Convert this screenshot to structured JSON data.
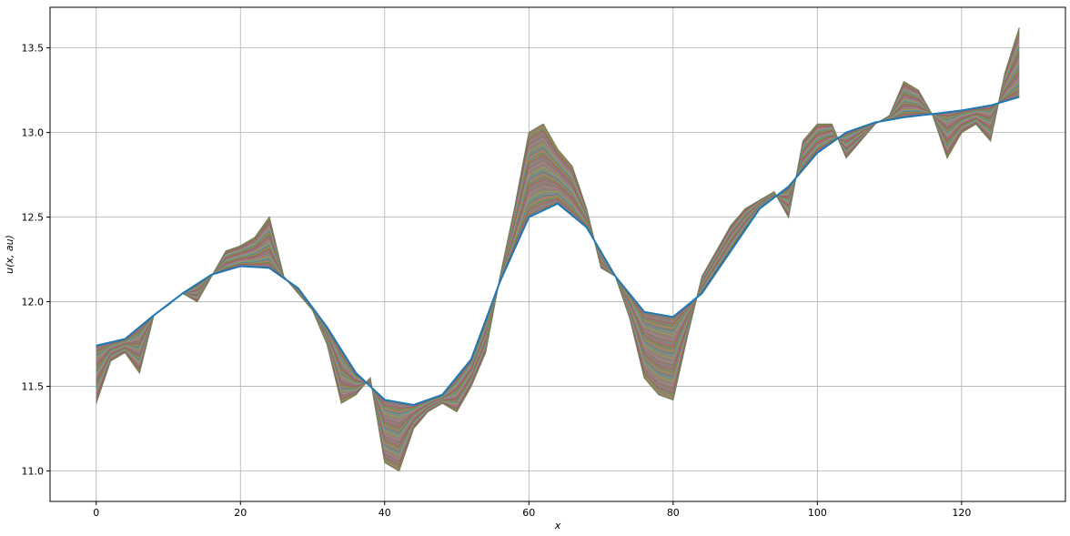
{
  "chart_data": {
    "type": "line",
    "title": "",
    "xlabel": "x",
    "ylabel": "u(x, au)",
    "xlim": [
      -6.4,
      134.4
    ],
    "ylim": [
      10.82,
      13.74
    ],
    "xticks": [
      0,
      20,
      40,
      60,
      80,
      100,
      120
    ],
    "yticks": [
      11.0,
      11.5,
      12.0,
      12.5,
      13.0,
      13.5
    ],
    "xtick_labels": [
      "0",
      "20",
      "40",
      "60",
      "80",
      "100",
      "120"
    ],
    "ytick_labels": [
      "11.0",
      "11.5",
      "12.0",
      "12.5",
      "13.0",
      "13.5"
    ],
    "grid": true,
    "legend": "none",
    "band_colors": [
      "#1f77b4",
      "#ff7f0e",
      "#2ca02c",
      "#d62728",
      "#9467bd",
      "#8c564b",
      "#e377c2",
      "#7f7f7f",
      "#bcbd22",
      "#17becf"
    ],
    "series": [
      {
        "x": [
          0,
          2,
          4,
          6,
          8,
          10,
          12,
          14,
          16,
          18,
          20,
          22,
          24,
          26,
          28,
          30,
          32,
          34,
          36,
          38,
          40,
          42,
          44,
          46,
          48,
          50,
          52,
          54,
          56,
          58,
          60,
          62,
          64,
          66,
          68,
          70,
          72,
          74,
          76,
          78,
          80,
          82,
          84,
          86,
          88,
          90,
          92,
          94,
          96,
          98,
          100,
          102,
          104,
          106,
          108,
          110,
          112,
          114,
          116,
          118,
          120,
          122,
          124,
          126,
          128
        ],
        "values": [
          11.4,
          11.65,
          11.7,
          11.58,
          11.92,
          11.98,
          12.05,
          12.0,
          12.15,
          12.3,
          12.33,
          12.38,
          12.5,
          12.15,
          12.05,
          11.95,
          11.75,
          11.4,
          11.45,
          11.55,
          11.05,
          11.0,
          11.25,
          11.35,
          11.4,
          11.35,
          11.5,
          11.7,
          12.15,
          12.55,
          13.0,
          13.05,
          12.9,
          12.8,
          12.55,
          12.2,
          12.15,
          11.9,
          11.55,
          11.45,
          11.42,
          11.8,
          12.15,
          12.3,
          12.45,
          12.55,
          12.6,
          12.65,
          12.5,
          12.95,
          13.05,
          13.05,
          12.85,
          12.95,
          13.05,
          13.1,
          13.3,
          13.25,
          13.1,
          12.85,
          13.0,
          13.05,
          12.95,
          13.35,
          13.62
        ]
      },
      {
        "x": [
          0,
          4,
          8,
          12,
          16,
          20,
          24,
          28,
          32,
          36,
          40,
          44,
          48,
          52,
          56,
          60,
          64,
          68,
          72,
          76,
          80,
          84,
          88,
          92,
          96,
          100,
          104,
          108,
          112,
          116,
          120,
          124,
          128
        ],
        "values": [
          11.74,
          11.78,
          11.92,
          12.05,
          12.16,
          12.21,
          12.2,
          12.08,
          11.85,
          11.58,
          11.42,
          11.39,
          11.45,
          11.66,
          12.12,
          12.5,
          12.58,
          12.44,
          12.15,
          11.94,
          11.91,
          12.05,
          12.3,
          12.55,
          12.68,
          12.88,
          13.0,
          13.06,
          13.09,
          13.11,
          13.13,
          13.16,
          13.21
        ]
      }
    ]
  }
}
